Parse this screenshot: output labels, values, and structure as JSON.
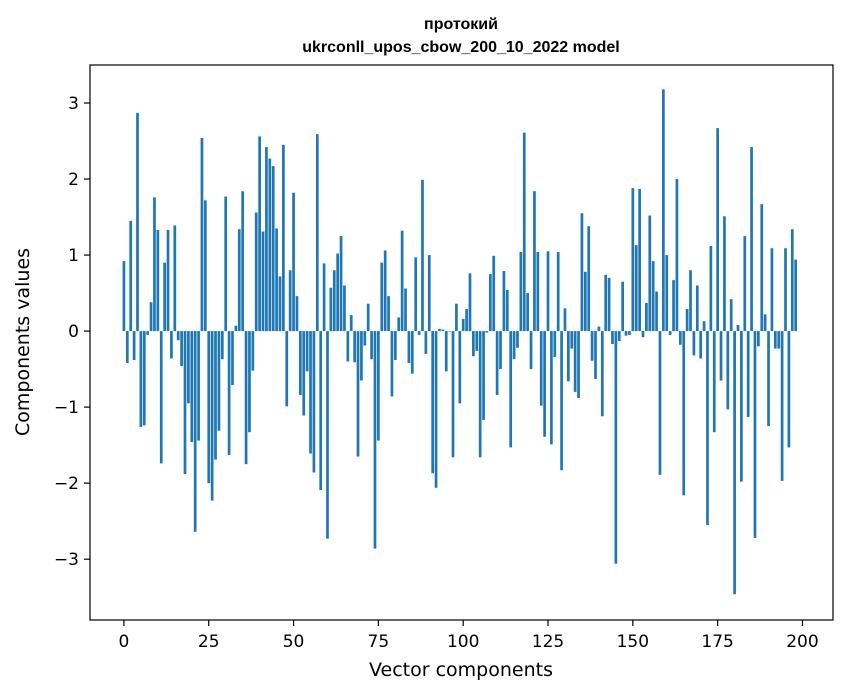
{
  "chart_data": {
    "type": "bar",
    "title_line1": "протокий",
    "title_line2": "ukrconll_upos_cbow_200_10_2022 model",
    "xlabel": "Vector components",
    "ylabel": "Components values",
    "xlim": [
      -10,
      209
    ],
    "ylim": [
      -3.8,
      3.5
    ],
    "xticks": [
      0,
      25,
      50,
      75,
      100,
      125,
      150,
      175,
      200
    ],
    "yticks": [
      3,
      2,
      1,
      0,
      -1,
      -2,
      -3
    ],
    "ytick_labels": [
      "3",
      "2",
      "1",
      "0",
      "−1",
      "−2",
      "−3"
    ],
    "bar_color": "#1f77b4",
    "grid": false,
    "values": [
      0.92,
      -0.42,
      1.45,
      -0.38,
      2.87,
      -1.26,
      -1.24,
      -0.05,
      0.38,
      1.76,
      1.33,
      -1.74,
      0.9,
      1.33,
      -0.36,
      1.39,
      -0.12,
      -0.46,
      -1.88,
      -0.95,
      -1.46,
      -2.64,
      -1.44,
      2.54,
      1.72,
      -2.0,
      -2.23,
      -1.69,
      -1.31,
      -0.37,
      1.77,
      -1.63,
      -0.71,
      0.07,
      1.34,
      1.84,
      -1.75,
      -1.33,
      -0.52,
      1.56,
      2.56,
      1.31,
      2.42,
      2.27,
      2.17,
      1.35,
      0.72,
      2.45,
      -0.99,
      0.8,
      1.82,
      0.46,
      -0.84,
      -1.11,
      -0.53,
      -1.61,
      -1.86,
      2.59,
      -2.09,
      0.89,
      -2.73,
      0.57,
      0.8,
      1.02,
      1.25,
      0.6,
      -0.4,
      0.21,
      -0.41,
      -1.65,
      -0.65,
      -0.19,
      0.36,
      -0.37,
      -2.86,
      -1.44,
      0.9,
      1.06,
      0.46,
      -0.86,
      -0.38,
      0.18,
      1.32,
      0.56,
      -0.42,
      -0.56,
      0.97,
      -0.05,
      1.99,
      -0.3,
      1.0,
      -1.87,
      -2.06,
      0.03,
      0.02,
      -0.53,
      0.0,
      -1.66,
      0.36,
      -0.95,
      0.16,
      0.29,
      0.76,
      -0.33,
      -0.26,
      -1.66,
      -1.17,
      -0.02,
      0.75,
      0.99,
      -0.84,
      -0.5,
      0.79,
      0.54,
      -1.53,
      -0.37,
      -0.22,
      1.04,
      2.61,
      0.5,
      -0.5,
      1.84,
      1.04,
      -0.98,
      -1.39,
      1.05,
      -1.49,
      -0.34,
      1.04,
      -1.83,
      0.3,
      -0.66,
      -0.23,
      -0.8,
      -0.88,
      1.55,
      0.78,
      1.38,
      -0.39,
      -0.63,
      0.06,
      -1.12,
      0.74,
      0.7,
      -0.17,
      -3.06,
      -0.13,
      0.65,
      -0.06,
      -0.05,
      1.88,
      1.13,
      1.87,
      -0.08,
      0.37,
      1.52,
      0.92,
      0.52,
      -1.89,
      3.18,
      1.0,
      -0.05,
      0.67,
      2.0,
      -0.18,
      -2.16,
      0.29,
      0.8,
      -0.32,
      0.6,
      -0.36,
      0.13,
      -2.55,
      1.12,
      -1.33,
      2.67,
      -0.65,
      1.51,
      -1.03,
      0.42,
      -3.46,
      0.08,
      -1.98,
      1.25,
      -1.13,
      2.42,
      -2.72,
      -0.2,
      1.67,
      0.22,
      -1.25,
      1.09,
      -0.23,
      -0.23,
      -1.97,
      1.09,
      -1.53,
      1.34,
      0.94
    ]
  }
}
